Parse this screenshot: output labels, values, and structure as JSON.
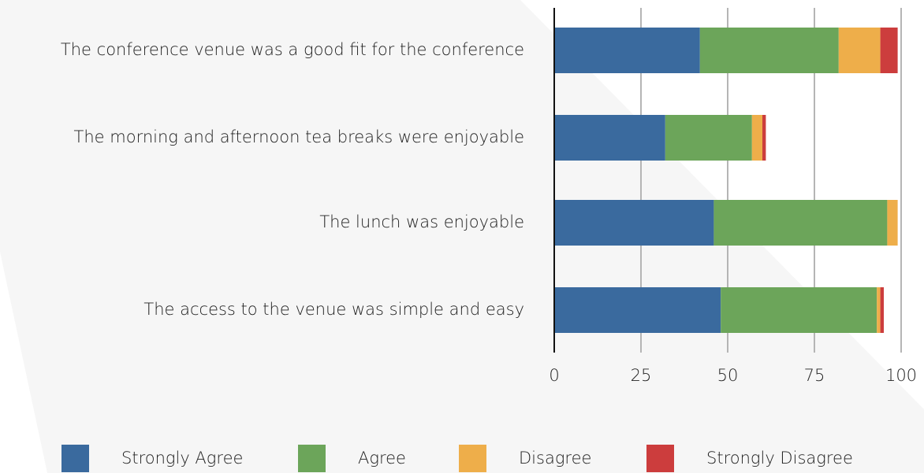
{
  "chart_data": {
    "type": "stacked-bar-horizontal",
    "categories": [
      "The conference venue was a good fit for the conference",
      "The morning and afternoon tea breaks were enjoyable",
      "The lunch was enjoyable",
      "The access to the venue was simple and easy"
    ],
    "series": [
      {
        "name": "Strongly Agree",
        "color": "#3a6a9e",
        "values": [
          42,
          32,
          46,
          48
        ]
      },
      {
        "name": "Agree",
        "color": "#6ca55a",
        "values": [
          40,
          25,
          50,
          45
        ]
      },
      {
        "name": "Disagree",
        "color": "#eeae4a",
        "values": [
          12,
          3,
          3,
          1
        ]
      },
      {
        "name": "Strongly Disagree",
        "color": "#cc3d3d",
        "values": [
          5,
          1,
          0,
          1
        ]
      }
    ],
    "xlim": [
      0,
      100
    ],
    "xticks": [
      0,
      25,
      50,
      75,
      100
    ],
    "grid": true,
    "legend": "bottom"
  }
}
